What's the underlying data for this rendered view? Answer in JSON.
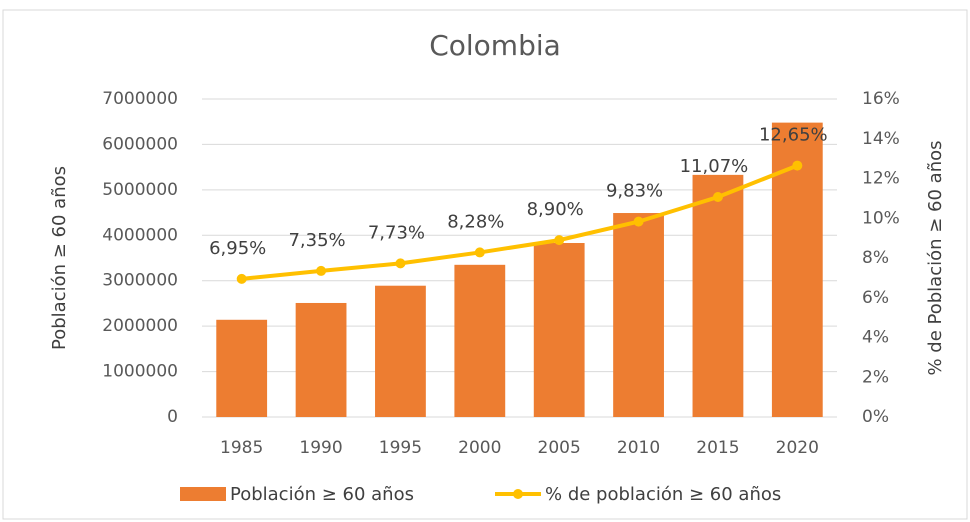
{
  "chart_data": {
    "type": "bar",
    "title": "Colombia",
    "categories": [
      "1985",
      "1990",
      "1995",
      "2000",
      "2005",
      "2010",
      "2015",
      "2020"
    ],
    "ylabel": "Población ≥ 60 años",
    "y2label": "% de Población ≥ 60 años",
    "series": [
      {
        "name": "Población ≥ 60 años",
        "type": "bar",
        "color": "#ed7d31",
        "values": [
          2140000,
          2510000,
          2890000,
          3350000,
          3830000,
          4490000,
          5330000,
          6480000
        ]
      },
      {
        "name": "% de población ≥ 60 años",
        "type": "line",
        "color": "#ffc000",
        "axis": "y2",
        "values": [
          6.95,
          7.35,
          7.73,
          8.28,
          8.9,
          9.83,
          11.07,
          12.65
        ],
        "value_labels": [
          "6,95%",
          "7,35%",
          "7,73%",
          "8,28%",
          "8,90%",
          "9,83%",
          "11,07%",
          "12,65%"
        ]
      }
    ],
    "ylim": [
      0,
      7000000
    ],
    "yticks": [
      0,
      1000000,
      2000000,
      3000000,
      4000000,
      5000000,
      6000000,
      7000000
    ],
    "y2lim": [
      0,
      16
    ],
    "y2ticks": [
      {
        "value": 0,
        "label": "0%"
      },
      {
        "value": 2,
        "label": "2%"
      },
      {
        "value": 4,
        "label": "4%"
      },
      {
        "value": 6,
        "label": "6%"
      },
      {
        "value": 8,
        "label": "8%"
      },
      {
        "value": 10,
        "label": "10%"
      },
      {
        "value": 12,
        "label": "12%"
      },
      {
        "value": 14,
        "label": "14%"
      },
      {
        "value": 16,
        "label": "16%"
      }
    ],
    "grid": true,
    "legend": "bottom"
  }
}
